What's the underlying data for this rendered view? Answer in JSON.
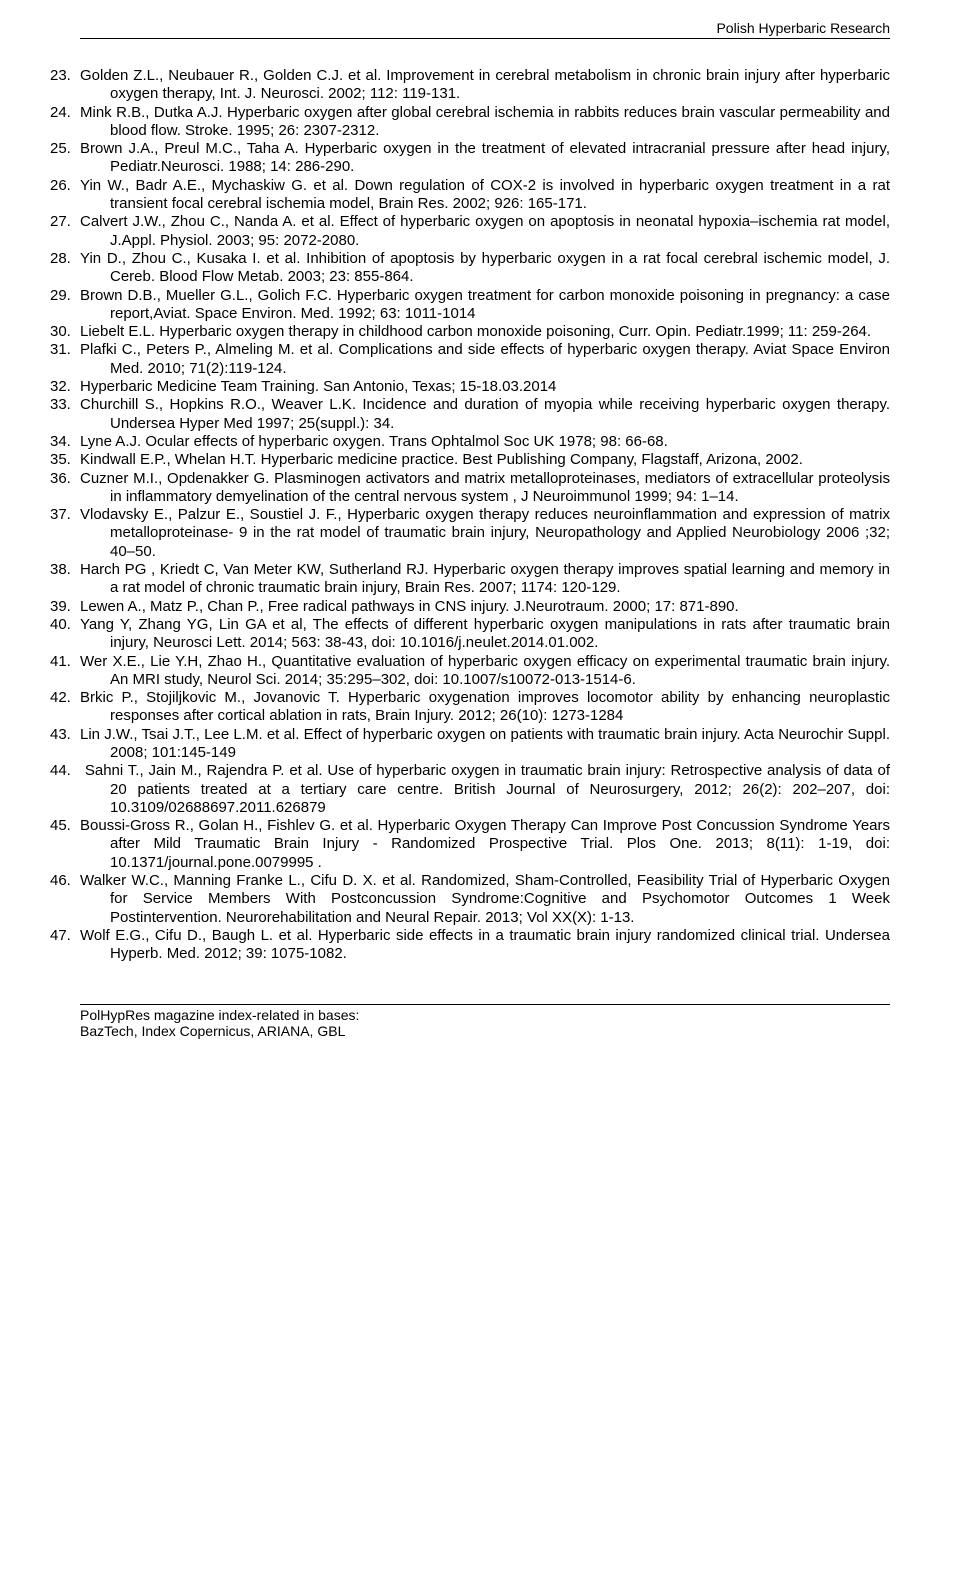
{
  "header": "Polish Hyperbaric Research",
  "footer_line1": "PolHypRes magazine index-related in bases:",
  "footer_line2": "BazTech, Index Copernicus, ARIANA, GBL",
  "refs": [
    {
      "n": "23.",
      "t": "Golden Z.L., Neubauer R., Golden C.J. et al. Improvement in cerebral metabolism in chronic brain injury after hyperbaric oxygen therapy, Int. J. Neurosci. 2002; 112: 119-131."
    },
    {
      "n": "24.",
      "t": "Mink R.B., Dutka A.J. Hyperbaric oxygen after global cerebral ischemia in rabbits reduces brain vascular permeability and blood flow. Stroke. 1995; 26: 2307-2312."
    },
    {
      "n": "25.",
      "t": "Brown J.A., Preul M.C., Taha A. Hyperbaric oxygen in the treatment of elevated intracranial pressure after head injury, Pediatr.Neurosci. 1988; 14: 286-290."
    },
    {
      "n": "26.",
      "t": "Yin W., Badr A.E., Mychaskiw G. et al. Down regulation of COX-2 is involved in hyperbaric oxygen treatment in a rat transient focal cerebral ischemia model, Brain Res. 2002; 926: 165-171."
    },
    {
      "n": "27.",
      "t": "Calvert J.W., Zhou C., Nanda A. et al. Effect of hyperbaric oxygen on apoptosis in neonatal hypoxia–ischemia rat model, J.Appl. Physiol. 2003; 95: 2072-2080."
    },
    {
      "n": "28.",
      "t": "Yin D., Zhou C., Kusaka I. et al.  Inhibition of apoptosis by hyperbaric oxygen in a rat focal cerebral ischemic model, J. Cereb. Blood Flow Metab. 2003; 23: 855-864."
    },
    {
      "n": "29.",
      "t": "Brown D.B., Mueller G.L., Golich F.C. Hyperbaric oxygen treatment for carbon monoxide poisoning in pregnancy: a case report,Aviat. Space Environ. Med. 1992; 63: 1011-1014"
    },
    {
      "n": "30.",
      "t": "Liebelt E.L. Hyperbaric oxygen therapy in childhood carbon monoxide poisoning, Curr. Opin. Pediatr.1999; 11: 259-264."
    },
    {
      "n": "31.",
      "t": "Plafki C., Peters P., Almeling M. et al. Complications and side effects of hyperbaric oxygen therapy. Aviat Space Environ Med. 2010; 71(2):119-124."
    },
    {
      "n": "32.",
      "t": "Hyperbaric Medicine Team Training. San Antonio, Texas; 15-18.03.2014"
    },
    {
      "n": "33.",
      "t": "Churchill S., Hopkins R.O., Weaver L.K. Incidence and duration of myopia while receiving hyperbaric oxygen therapy. Undersea Hyper Med 1997; 25(suppl.): 34."
    },
    {
      "n": "34.",
      "t": "Lyne A.J. Ocular effects of hyperbaric oxygen. Trans Ophtalmol Soc UK 1978; 98: 66-68."
    },
    {
      "n": "35.",
      "t": "Kindwall E.P., Whelan H.T. Hyperbaric medicine practice. Best Publishing Company, Flagstaff, Arizona, 2002."
    },
    {
      "n": "36.",
      "t": "Cuzner M.I., Opdenakker G. Plasminogen activators and matrix metalloproteinases, mediators of extracellular proteolysis in inflammatory demyelination of the central nervous system , J Neuroimmunol 1999; 94: 1–14."
    },
    {
      "n": "37.",
      "t": "Vlodavsky E., Palzur E., Soustiel J. F., Hyperbaric oxygen therapy reduces neuroinflammation and expression of matrix metalloproteinase- 9 in the rat model of traumatic brain injury, Neuropathology and Applied Neurobiology 2006 ;32; 40–50."
    },
    {
      "n": "38.",
      "t": "Harch PG , Kriedt C, Van Meter KW, Sutherland RJ. Hyperbaric oxygen therapy improves spatial learning and memory in a rat model of chronic traumatic brain injury, Brain Res. 2007; 1174: 120-129."
    },
    {
      "n": "39.",
      "t": "Lewen A., Matz P., Chan P., Free radical pathways in CNS injury. J.Neurotraum. 2000; 17: 871-890."
    },
    {
      "n": "40.",
      "t": "Yang Y, Zhang YG, Lin GA et al, The effects of different hyperbaric oxygen manipulations in rats after traumatic brain injury, Neurosci Lett. 2014; 563: 38-43, doi: 10.1016/j.neulet.2014.01.002."
    },
    {
      "n": "41.",
      "t": "Wer X.E., Lie Y.H, Zhao H., Quantitative evaluation of hyperbaric oxygen efficacy on experimental traumatic brain injury. An MRI study, Neurol Sci. 2014; 35:295–302, doi: 10.1007/s10072-013-1514-6."
    },
    {
      "n": "42.",
      "t": "Brkic P., Stojiljkovic M., Jovanovic T. Hyperbaric oxygenation improves locomotor ability by enhancing neuroplastic responses after cortical ablation in rats, Brain Injury. 2012; 26(10): 1273-1284"
    },
    {
      "n": "43.",
      "t": "Lin J.W., Tsai J.T., Lee L.M. et al. Effect of hyperbaric oxygen on patients with traumatic brain injury. Acta Neurochir Suppl. 2008; 101:145-149"
    },
    {
      "n": "44.",
      "t": " Sahni T., Jain M., Rajendra P. et al. Use of hyperbaric oxygen in traumatic brain injury: Retrospective analysis of data of 20 patients treated at a tertiary care centre. British Journal of Neurosurgery,  2012; 26(2): 202–207, doi: 10.3109/02688697.2011.626879"
    },
    {
      "n": "45.",
      "t": "Boussi-Gross R., Golan H., Fishlev G. et al. Hyperbaric Oxygen Therapy Can Improve Post Concussion Syndrome Years after Mild Traumatic Brain Injury - Randomized Prospective Trial. Plos One. 2013; 8(11): 1-19,  doi: 10.1371/journal.pone.0079995 ."
    },
    {
      "n": "46.",
      "t": "Walker W.C., Manning Franke L., Cifu D. X. et al. Randomized, Sham-Controlled, Feasibility Trial of Hyperbaric Oxygen for Service Members With Postconcussion Syndrome:Cognitive and Psychomotor Outcomes 1 Week Postintervention. Neurorehabilitation and Neural Repair. 2013; Vol XX(X): 1-13."
    },
    {
      "n": "47.",
      "t": "Wolf E.G., Cifu D., Baugh L. et al. Hyperbaric side effects in a traumatic brain injury randomized clinical trial. Undersea Hyperb. Med. 2012; 39: 1075-1082."
    }
  ]
}
